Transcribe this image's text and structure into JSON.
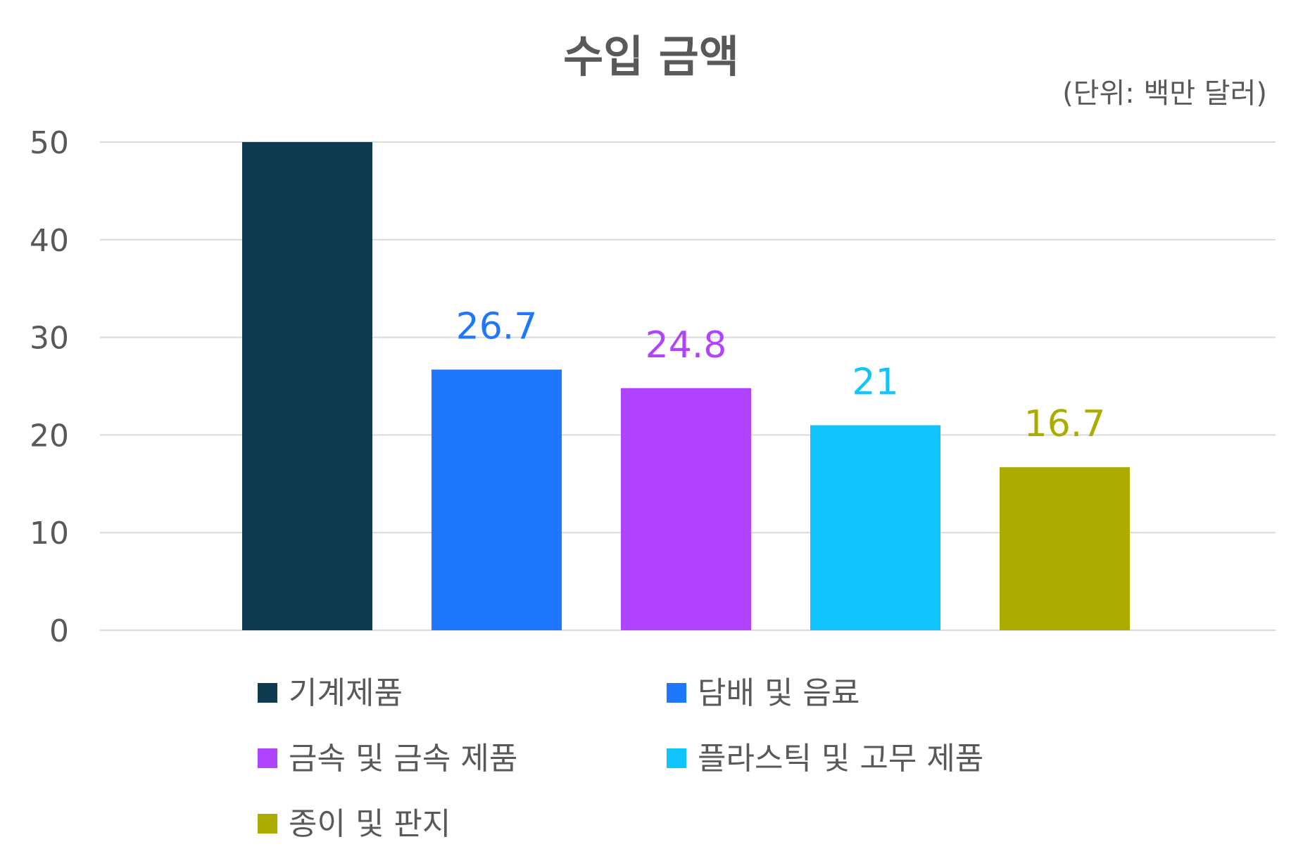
{
  "chart_data": {
    "type": "bar",
    "title": "수입 금액",
    "unit_note": "(단위: 백만 달러)",
    "categories": [
      "기계제품",
      "담배 및 음료",
      "금속 및 금속 제품",
      "플라스틱 및 고무 제품",
      "종이 및 판지"
    ],
    "values": [
      50,
      26.7,
      24.8,
      21,
      16.7
    ],
    "data_labels": [
      "",
      "26.7",
      "24.8",
      "21",
      "16.7"
    ],
    "colors": [
      "#0f3a4f",
      "#1f77fe",
      "#b044fe",
      "#12c4fc",
      "#acac00"
    ],
    "ylim": [
      0,
      50
    ],
    "yticks": [
      0,
      10,
      20,
      30,
      40,
      50
    ],
    "grid": true,
    "legend_position": "bottom"
  }
}
